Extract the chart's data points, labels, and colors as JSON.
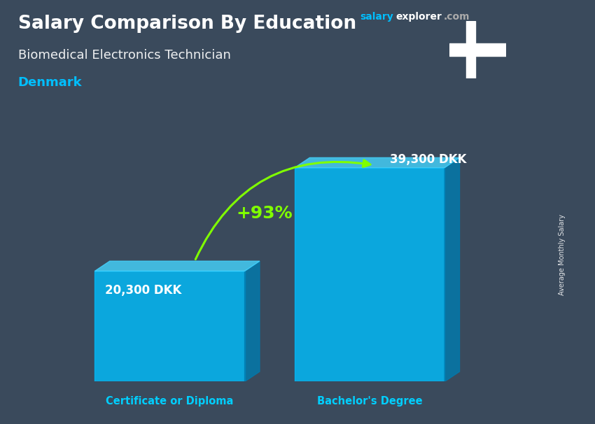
{
  "title_main": "Salary Comparison By Education",
  "title_sub": "Biomedical Electronics Technician",
  "title_country": "Denmark",
  "categories": [
    "Certificate or Diploma",
    "Bachelor's Degree"
  ],
  "values": [
    20300,
    39300
  ],
  "value_labels": [
    "20,300 DKK",
    "39,300 DKK"
  ],
  "pct_change": "+93%",
  "bar_color_face": "#00BFFF",
  "bar_color_side": "#007BAF",
  "bar_color_top": "#45D4FF",
  "bar_alpha": 0.8,
  "bg_color": "#3a4a5c",
  "text_color_white": "#FFFFFF",
  "text_color_cyan": "#00CFFF",
  "text_color_green": "#80FF00",
  "ylabel": "Average Monthly Salary",
  "flag_red": "#C8102E",
  "flag_white": "#FFFFFF",
  "brand_color_salary": "#00BFFF",
  "brand_color_explorer": "#FFFFFF",
  "brand_color_com": "#AAAAAA",
  "brand_text_salary": "salary",
  "brand_text_explorer": "explorer",
  "brand_text_com": ".com"
}
